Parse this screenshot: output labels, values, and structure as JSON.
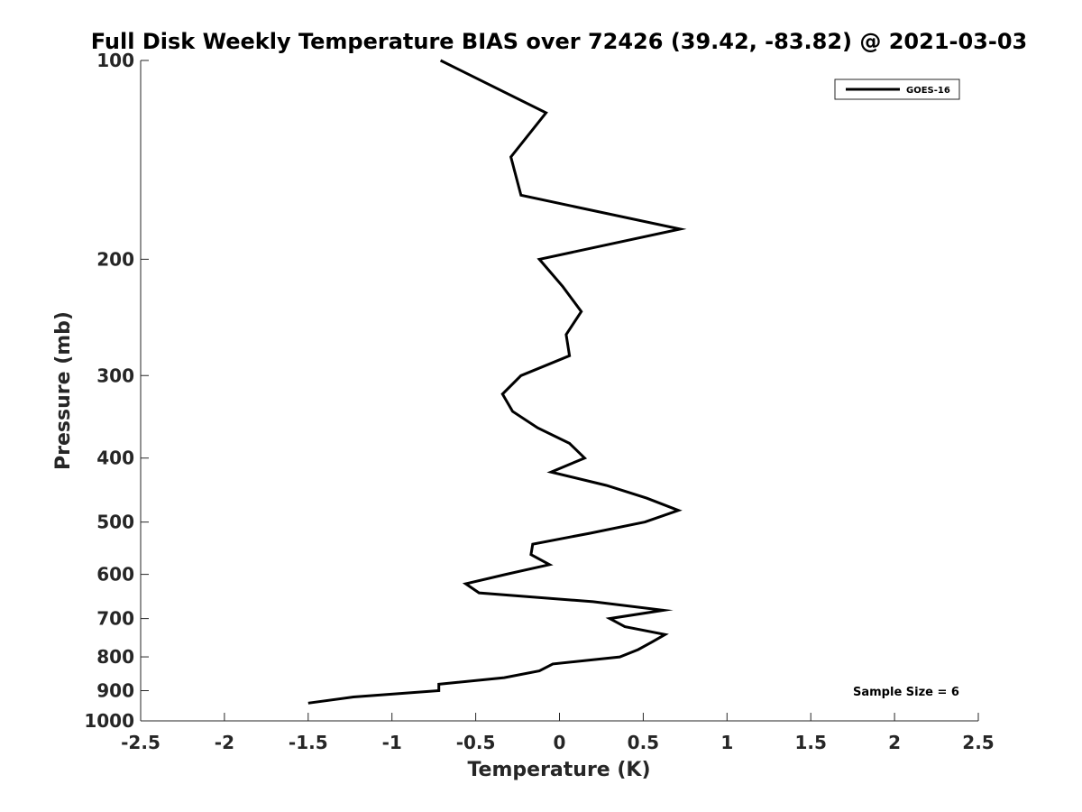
{
  "chart_data": {
    "type": "line",
    "title": "Full Disk Weekly Temperature BIAS over 72426 (39.42, -83.82) @ 2021-03-03",
    "xlabel": "Temperature (K)",
    "ylabel": "Pressure (mb)",
    "xlim": [
      -2.5,
      2.5
    ],
    "ylim": [
      100,
      1000
    ],
    "y_scale": "log",
    "y_reversed": true,
    "grid": false,
    "legend_position": "top-right",
    "x_ticks": [
      -2.5,
      -2,
      -1.5,
      -1,
      -0.5,
      0,
      0.5,
      1,
      1.5,
      2,
      2.5
    ],
    "x_tick_labels": [
      "-2.5",
      "-2",
      "-1.5",
      "-1",
      "-0.5",
      "0",
      "0.5",
      "1",
      "1.5",
      "2",
      "2.5"
    ],
    "y_ticks": [
      100,
      200,
      300,
      400,
      500,
      600,
      700,
      800,
      900,
      1000
    ],
    "y_tick_labels": [
      "100",
      "200",
      "300",
      "400",
      "500",
      "600",
      "700",
      "800",
      "900",
      "1000"
    ],
    "series": [
      {
        "name": "GOES-16",
        "color": "#000000",
        "points": [
          {
            "x": -0.71,
            "y": 100
          },
          {
            "x": -0.08,
            "y": 120
          },
          {
            "x": -0.29,
            "y": 140
          },
          {
            "x": -0.23,
            "y": 160
          },
          {
            "x": 0.72,
            "y": 180
          },
          {
            "x": -0.12,
            "y": 200
          },
          {
            "x": 0.02,
            "y": 220
          },
          {
            "x": 0.13,
            "y": 240
          },
          {
            "x": 0.04,
            "y": 260
          },
          {
            "x": 0.06,
            "y": 280
          },
          {
            "x": -0.23,
            "y": 300
          },
          {
            "x": -0.34,
            "y": 320
          },
          {
            "x": -0.28,
            "y": 340
          },
          {
            "x": -0.13,
            "y": 360
          },
          {
            "x": 0.06,
            "y": 380
          },
          {
            "x": 0.15,
            "y": 400
          },
          {
            "x": -0.05,
            "y": 420
          },
          {
            "x": 0.28,
            "y": 440
          },
          {
            "x": 0.52,
            "y": 460
          },
          {
            "x": 0.71,
            "y": 480
          },
          {
            "x": 0.51,
            "y": 500
          },
          {
            "x": 0.18,
            "y": 520
          },
          {
            "x": -0.16,
            "y": 540
          },
          {
            "x": -0.17,
            "y": 560
          },
          {
            "x": -0.06,
            "y": 580
          },
          {
            "x": -0.32,
            "y": 600
          },
          {
            "x": -0.56,
            "y": 620
          },
          {
            "x": -0.48,
            "y": 640
          },
          {
            "x": 0.2,
            "y": 660
          },
          {
            "x": 0.62,
            "y": 680
          },
          {
            "x": 0.3,
            "y": 700
          },
          {
            "x": 0.39,
            "y": 720
          },
          {
            "x": 0.63,
            "y": 740
          },
          {
            "x": 0.55,
            "y": 760
          },
          {
            "x": 0.47,
            "y": 780
          },
          {
            "x": 0.36,
            "y": 800
          },
          {
            "x": -0.04,
            "y": 820
          },
          {
            "x": -0.12,
            "y": 840
          },
          {
            "x": -0.33,
            "y": 860
          },
          {
            "x": -0.72,
            "y": 880
          },
          {
            "x": -0.72,
            "y": 900
          },
          {
            "x": -1.23,
            "y": 920
          },
          {
            "x": -1.5,
            "y": 940
          }
        ]
      }
    ],
    "annotations": [
      {
        "text": "Sample Size = 6",
        "position": "bottom-right"
      }
    ]
  }
}
